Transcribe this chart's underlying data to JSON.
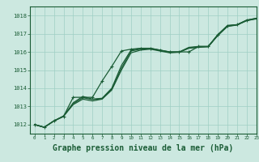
{
  "background_color": "#cce8e0",
  "grid_color": "#9fcfc4",
  "line_color": "#1a5c35",
  "xlabel": "Graphe pression niveau de la mer (hPa)",
  "xlabel_fontsize": 7,
  "xlim": [
    -0.5,
    23
  ],
  "ylim": [
    1011.5,
    1018.5
  ],
  "yticks": [
    1012,
    1013,
    1014,
    1015,
    1016,
    1017,
    1018
  ],
  "xticks": [
    0,
    1,
    2,
    3,
    4,
    5,
    6,
    7,
    8,
    9,
    10,
    11,
    12,
    13,
    14,
    15,
    16,
    17,
    18,
    19,
    20,
    21,
    22,
    23
  ],
  "series": [
    [
      1012.0,
      1011.85,
      1012.2,
      1012.45,
      1013.5,
      1013.5,
      1013.5,
      1014.4,
      1015.2,
      1016.05,
      1016.15,
      1016.2,
      1016.2,
      1016.1,
      1016.0,
      1016.0,
      1016.0,
      1016.3,
      1016.3,
      1016.95,
      1017.45,
      1017.5,
      1017.75,
      1017.85
    ],
    [
      1012.0,
      1011.85,
      1012.2,
      1012.45,
      1013.2,
      1013.55,
      1013.4,
      1013.45,
      1014.0,
      1015.25,
      1016.1,
      1016.2,
      1016.2,
      1016.1,
      1016.0,
      1016.0,
      1016.25,
      1016.3,
      1016.3,
      1016.95,
      1017.45,
      1017.5,
      1017.75,
      1017.85
    ],
    [
      1012.0,
      1011.85,
      1012.2,
      1012.45,
      1013.1,
      1013.4,
      1013.3,
      1013.4,
      1013.9,
      1015.0,
      1015.95,
      1016.1,
      1016.15,
      1016.05,
      1015.95,
      1015.98,
      1016.2,
      1016.25,
      1016.28,
      1016.9,
      1017.4,
      1017.48,
      1017.72,
      1017.82
    ],
    [
      1012.0,
      1011.85,
      1012.2,
      1012.48,
      1013.15,
      1013.48,
      1013.38,
      1013.42,
      1013.95,
      1015.1,
      1016.05,
      1016.15,
      1016.18,
      1016.08,
      1015.98,
      1015.99,
      1016.22,
      1016.28,
      1016.29,
      1016.92,
      1017.42,
      1017.49,
      1017.73,
      1017.83
    ]
  ],
  "marker_series": 0,
  "marker_style": "+",
  "marker_size": 3.5,
  "line_width": 0.9
}
